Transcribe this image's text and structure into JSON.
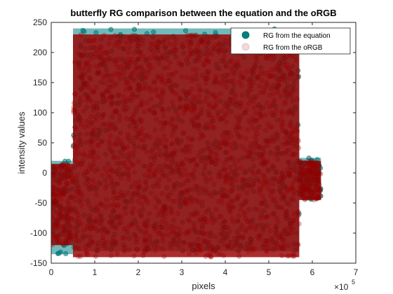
{
  "chart_data": {
    "type": "scatter",
    "title": "butterfly RG comparison between the equation and the oRGB",
    "xlabel": "pixels",
    "ylabel": "intensity values",
    "x_exponent_label": "×10",
    "x_exponent_power": "5",
    "xlim": [
      0,
      7
    ],
    "ylim": [
      -150,
      250
    ],
    "x_ticks": [
      0,
      1,
      2,
      3,
      4,
      5,
      6,
      7
    ],
    "x_tick_labels": [
      "0",
      "1",
      "2",
      "3",
      "4",
      "5",
      "6",
      "7"
    ],
    "y_ticks": [
      -150,
      -100,
      -50,
      0,
      50,
      100,
      150,
      200,
      250
    ],
    "y_tick_labels": [
      "-150",
      "-100",
      "-50",
      "0",
      "50",
      "100",
      "150",
      "200",
      "250"
    ],
    "grid": false,
    "legend_position": "top-right",
    "series": [
      {
        "name": "RG from the equation",
        "color": "#008080",
        "marker": "filled-circle",
        "bands": [
          {
            "x_start": 0.0,
            "x_end": 0.5,
            "y_low": -135,
            "y_high": 20
          },
          {
            "x_start": 0.5,
            "x_end": 5.7,
            "y_low": -130,
            "y_high": 240
          },
          {
            "x_start": 5.7,
            "x_end": 6.2,
            "y_low": -45,
            "y_high": 25
          }
        ]
      },
      {
        "name": "RG from the oRGB",
        "color": "#990000",
        "marker": "faded-circle",
        "bands": [
          {
            "x_start": 0.0,
            "x_end": 0.5,
            "y_low": -120,
            "y_high": 15
          },
          {
            "x_start": 0.5,
            "x_end": 5.7,
            "y_low": -140,
            "y_high": 230
          },
          {
            "x_start": 5.7,
            "x_end": 6.2,
            "y_low": -45,
            "y_high": 20
          }
        ]
      }
    ]
  }
}
